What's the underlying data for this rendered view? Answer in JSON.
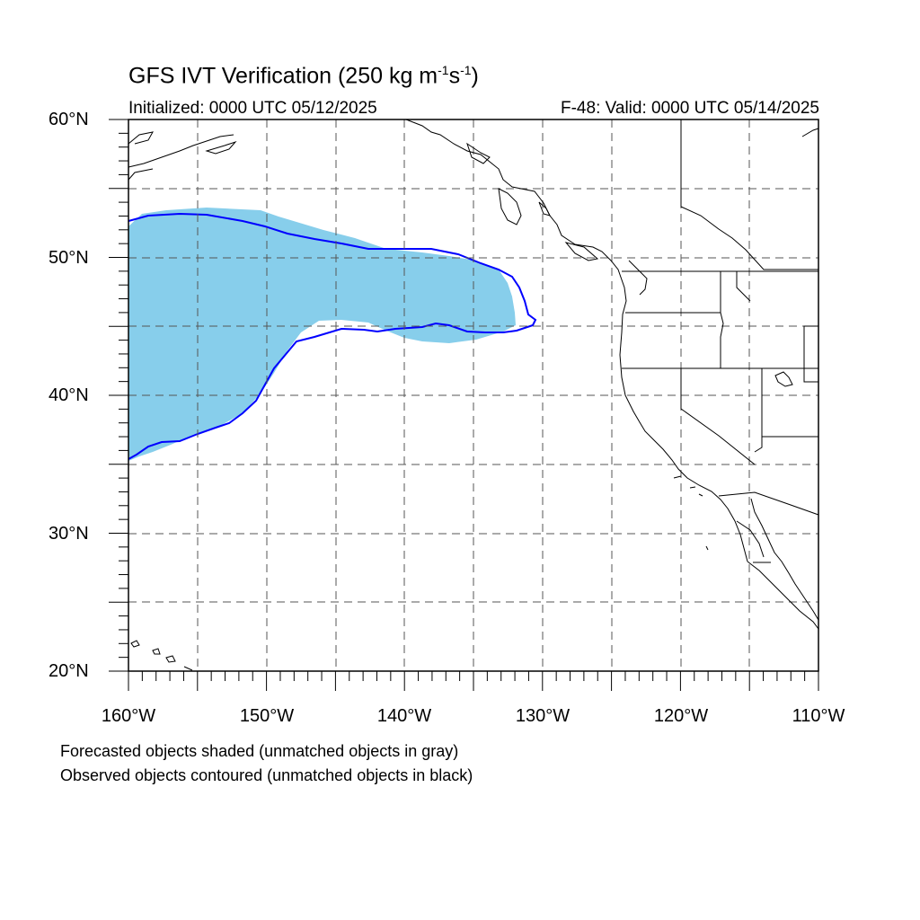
{
  "title": {
    "prefix": "GFS IVT Verification (250 kg m",
    "sup1": "-1",
    "mid": "s",
    "sup2": "-1",
    "suffix": ")"
  },
  "initialized": "Initialized: 0000 UTC 05/12/2025",
  "valid": "F-48: Valid: 0000 UTC 05/14/2025",
  "lat_labels": [
    "60°N",
    "50°N",
    "40°N",
    "30°N",
    "20°N"
  ],
  "lon_labels": [
    "160°W",
    "150°W",
    "140°W",
    "130°W",
    "120°W",
    "110°W"
  ],
  "legend_lines": [
    "Forecasted objects shaded (unmatched objects in gray)",
    "Observed objects contoured (unmatched objects in black)"
  ],
  "colors": {
    "forecast_fill": "#87ceeb",
    "observed_contour": "#0000ff",
    "coastline": "#000000"
  },
  "map_extent": {
    "lon_min": -160,
    "lon_max": -110,
    "lat_min": 20,
    "lat_max": 60
  }
}
